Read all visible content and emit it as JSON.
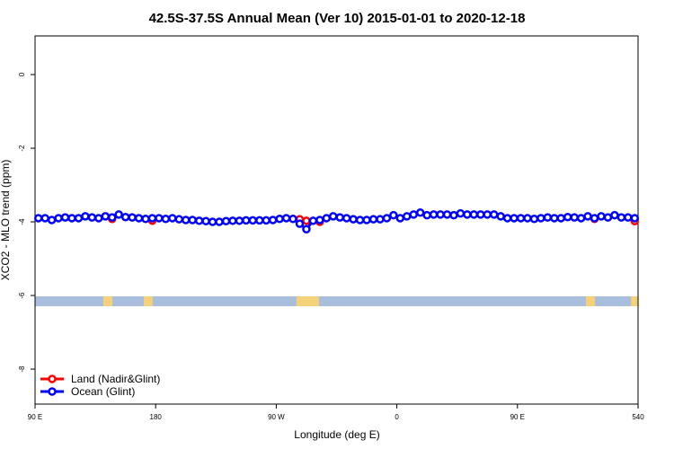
{
  "chart_data": {
    "type": "line",
    "title": "42.5S-37.5S Annual Mean (Ver 10)   2015-01-01 to 2020-12-18",
    "x_label": "Longitude (deg E)",
    "y_label": "XCO2 - MLO trend (ppm)",
    "xlim": [
      90,
      540
    ],
    "xticks": [
      {
        "value": 90,
        "label": "90 E"
      },
      180,
      {
        "value": 270,
        "label": "90 W"
      },
      {
        "value": 360,
        "label": "0"
      },
      {
        "value": 450,
        "label": "90 E"
      },
      540
    ],
    "ylim": [
      -8.95,
      1.05
    ],
    "yticks": [
      0,
      -2,
      -4,
      -6,
      -8
    ],
    "legend_position": "bottom-left",
    "x": [
      92.5,
      97.5,
      102.5,
      107.5,
      112.5,
      117.5,
      122.5,
      127.5,
      132.5,
      137.5,
      142.5,
      147.5,
      152.5,
      157.5,
      162.5,
      167.5,
      172.5,
      177.5,
      182.5,
      187.5,
      192.5,
      197.5,
      202.5,
      207.5,
      212.5,
      217.5,
      222.5,
      227.5,
      232.5,
      237.5,
      242.5,
      247.5,
      252.5,
      257.5,
      262.5,
      267.5,
      272.5,
      277.5,
      282.5,
      287.5,
      292.5,
      297.5,
      302.5,
      307.5,
      312.5,
      317.5,
      322.5,
      327.5,
      332.5,
      337.5,
      342.5,
      347.5,
      352.5,
      357.5,
      362.5,
      367.5,
      372.5,
      377.5,
      382.5,
      387.5,
      392.5,
      397.5,
      402.5,
      407.5,
      412.5,
      417.5,
      422.5,
      427.5,
      432.5,
      437.5,
      442.5,
      447.5,
      452.5,
      457.5,
      462.5,
      467.5,
      472.5,
      477.5,
      482.5,
      487.5,
      492.5,
      497.5,
      502.5,
      507.5,
      512.5,
      517.5,
      522.5,
      527.5,
      532.5,
      537.5
    ],
    "series": [
      {
        "name": "Land (Nadir&Glint)",
        "color": "#ff0000",
        "values": [
          null,
          null,
          null,
          null,
          null,
          null,
          null,
          null,
          null,
          null,
          null,
          -3.92,
          null,
          null,
          null,
          null,
          null,
          -3.97,
          null,
          null,
          null,
          null,
          null,
          null,
          null,
          null,
          null,
          null,
          null,
          null,
          null,
          null,
          null,
          null,
          null,
          null,
          null,
          null,
          null,
          -3.93,
          -3.97,
          null,
          -4.0,
          null,
          null,
          null,
          null,
          null,
          null,
          null,
          null,
          null,
          null,
          null,
          null,
          null,
          null,
          null,
          null,
          null,
          null,
          null,
          null,
          null,
          null,
          null,
          null,
          null,
          null,
          null,
          null,
          null,
          null,
          null,
          null,
          null,
          null,
          null,
          null,
          null,
          null,
          null,
          null,
          -3.92,
          null,
          null,
          null,
          null,
          null,
          -3.98
        ]
      },
      {
        "name": "Ocean (Glint)",
        "color": "#0000ff",
        "values": [
          -3.9,
          -3.9,
          -3.95,
          -3.9,
          -3.88,
          -3.9,
          -3.9,
          -3.85,
          -3.88,
          -3.9,
          -3.85,
          -3.88,
          -3.8,
          -3.87,
          -3.88,
          -3.9,
          -3.92,
          -3.9,
          -3.9,
          -3.92,
          -3.9,
          -3.93,
          -3.95,
          -3.95,
          -3.97,
          -3.98,
          -4.0,
          -4.0,
          -3.98,
          -3.97,
          -3.97,
          -3.96,
          -3.96,
          -3.96,
          -3.96,
          -3.95,
          -3.92,
          -3.9,
          -3.92,
          -4.05,
          -4.2,
          -3.97,
          -3.95,
          -3.9,
          -3.85,
          -3.88,
          -3.9,
          -3.93,
          -3.95,
          -3.95,
          -3.93,
          -3.93,
          -3.9,
          -3.82,
          -3.9,
          -3.85,
          -3.8,
          -3.75,
          -3.82,
          -3.8,
          -3.8,
          -3.8,
          -3.82,
          -3.77,
          -3.8,
          -3.8,
          -3.8,
          -3.8,
          -3.8,
          -3.85,
          -3.9,
          -3.9,
          -3.9,
          -3.9,
          -3.92,
          -3.9,
          -3.88,
          -3.9,
          -3.9,
          -3.87,
          -3.88,
          -3.9,
          -3.85,
          -3.9,
          -3.85,
          -3.88,
          -3.82,
          -3.88,
          -3.88,
          -3.9
        ]
      }
    ]
  }
}
